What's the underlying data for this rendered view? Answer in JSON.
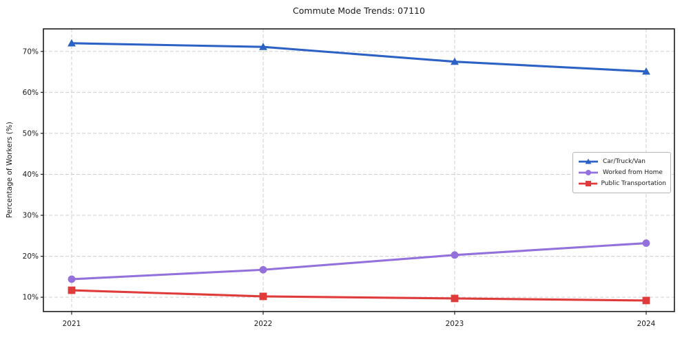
{
  "title": "Commute Mode Trends: 07110",
  "axes": {
    "ylabel": "Percentage of Workers (%)",
    "x_tick_labels": [
      "2021",
      "2022",
      "2023",
      "2024"
    ],
    "y_tick_labels": [
      "10%",
      "20%",
      "30%",
      "40%",
      "50%",
      "60%",
      "70%"
    ],
    "y_tick_values": [
      10,
      20,
      30,
      40,
      50,
      60,
      70
    ]
  },
  "colors": {
    "grid": "#cfcfcf",
    "spine": "#1a1a1a",
    "text": "#1a1a1a",
    "legend_border": "#b5b5b5"
  },
  "chart_data": {
    "type": "line",
    "title": "Commute Mode Trends: 07110",
    "xlabel": "",
    "ylabel": "Percentage of Workers (%)",
    "x": [
      2021,
      2022,
      2023,
      2024
    ],
    "series": [
      {
        "name": "Car/Truck/Van",
        "values": [
          72.0,
          71.1,
          67.5,
          65.1
        ],
        "color": "#2d62c5",
        "marker": "triangle-up"
      },
      {
        "name": "Worked from Home",
        "values": [
          14.4,
          16.7,
          20.3,
          23.2
        ],
        "color": "#9370db",
        "marker": "circle"
      },
      {
        "name": "Public Transportation",
        "values": [
          11.7,
          10.2,
          9.7,
          9.2
        ],
        "color": "#e03b3b",
        "marker": "square"
      }
    ],
    "ylim": [
      6.5,
      75.5
    ],
    "grid": true,
    "grid_style": "dashed",
    "legend_position": "center-right"
  }
}
